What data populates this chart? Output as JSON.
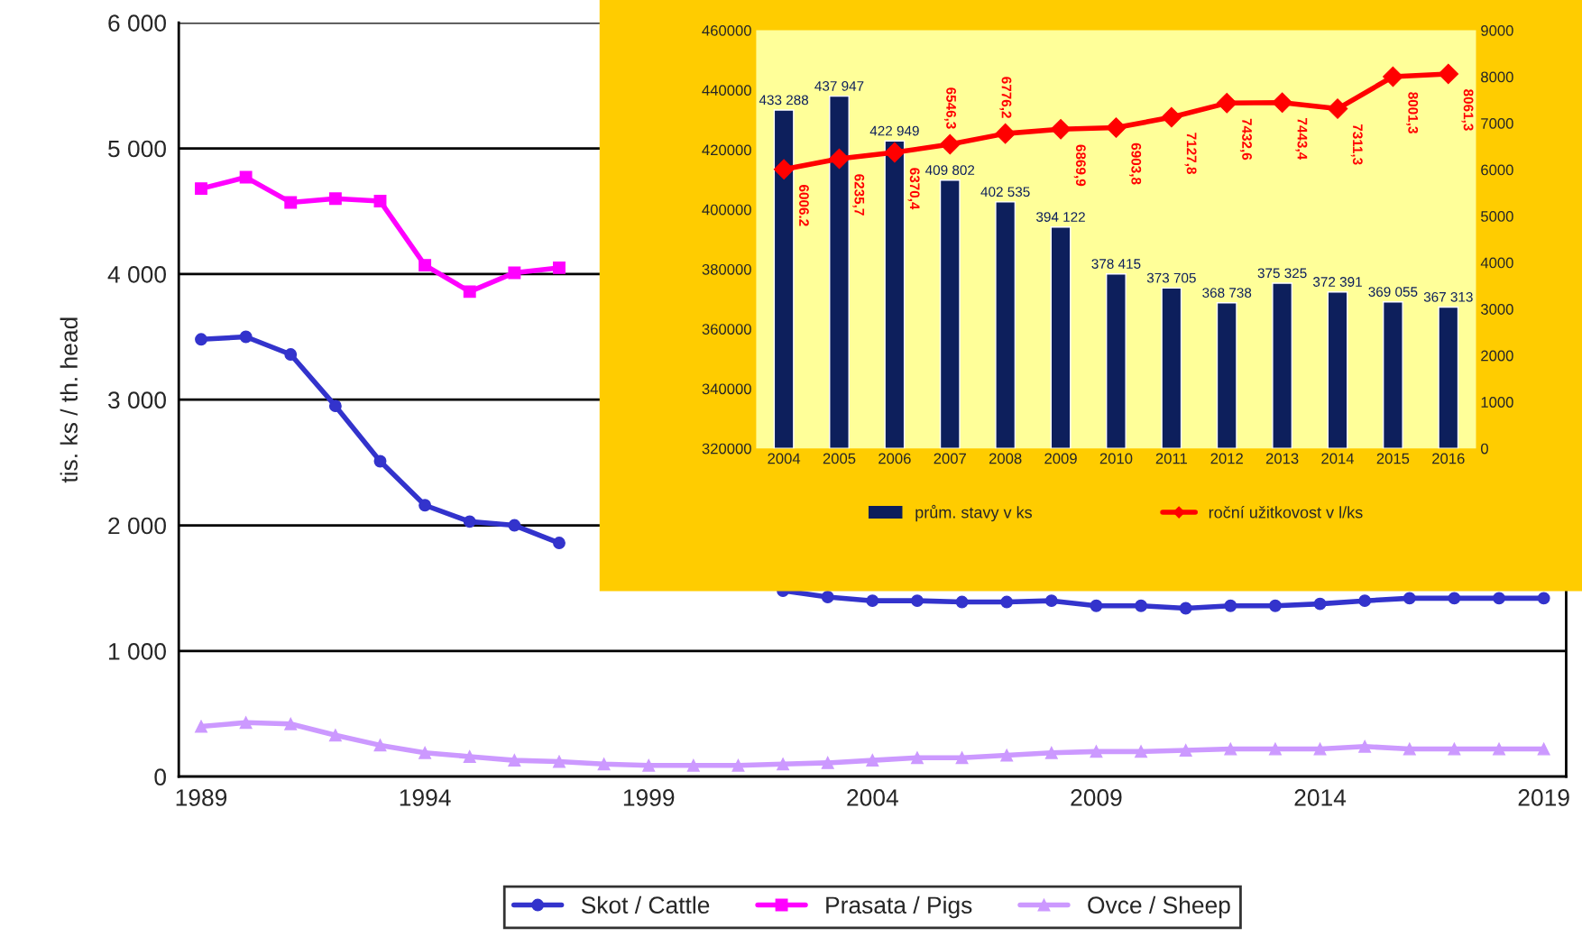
{
  "chart_data": [
    {
      "type": "line",
      "ylabel": "tis. ks / th. head",
      "x": [
        1989,
        1990,
        1991,
        1992,
        1993,
        1994,
        1995,
        1996,
        1997,
        1998,
        1999,
        2000,
        2001,
        2002,
        2003,
        2004,
        2005,
        2006,
        2007,
        2008,
        2009,
        2010,
        2011,
        2012,
        2013,
        2014,
        2015,
        2016,
        2017,
        2018,
        2019
      ],
      "series": [
        {
          "name": "Skot / Cattle",
          "color": "#3333cc",
          "marker": "circle",
          "values": [
            3480,
            3500,
            3360,
            2950,
            2510,
            2160,
            2030,
            2000,
            1860,
            null,
            null,
            null,
            null,
            1480,
            1430,
            1400,
            1400,
            1390,
            1390,
            1400,
            1360,
            1360,
            1340,
            1360,
            1360,
            1375,
            1400,
            1420,
            1420,
            1420,
            1420
          ]
        },
        {
          "name": "Prasata / Pigs",
          "color": "#ff00ff",
          "marker": "square",
          "values": [
            4680,
            4770,
            4570,
            4600,
            4580,
            4070,
            3860,
            4010,
            4050,
            null,
            null,
            null,
            null,
            null,
            null,
            null,
            null,
            null,
            null,
            null,
            null,
            null,
            null,
            null,
            null,
            null,
            null,
            null,
            null,
            null,
            null
          ]
        },
        {
          "name": "Ovce / Sheep",
          "color": "#cc99ff",
          "marker": "triangle",
          "values": [
            400,
            430,
            420,
            330,
            250,
            190,
            160,
            130,
            120,
            100,
            90,
            90,
            90,
            100,
            110,
            130,
            150,
            150,
            170,
            190,
            200,
            200,
            210,
            220,
            220,
            220,
            240,
            220,
            220,
            220,
            220
          ]
        }
      ],
      "xlim": [
        1988.5,
        2019.5
      ],
      "xticks": [
        1989,
        1994,
        1999,
        2004,
        2009,
        2014,
        2019
      ],
      "ylim": [
        0,
        6000
      ],
      "yticks": [
        0,
        {
          "value": 1000,
          "label": "1 000"
        },
        {
          "value": 2000,
          "label": "2 000"
        },
        {
          "value": 3000,
          "label": "3 000"
        },
        {
          "value": 4000,
          "label": "4 000"
        },
        {
          "value": 5000,
          "label": "5 000"
        },
        {
          "value": 6000,
          "label": "6 000"
        }
      ],
      "grid": "y",
      "legend": "bottom"
    },
    {
      "type": "bar",
      "categories": [
        "2004",
        "2005",
        "2006",
        "2007",
        "2008",
        "2009",
        "2010",
        "2011",
        "2012",
        "2013",
        "2014",
        "2015",
        "2016"
      ],
      "series": [
        {
          "name": "prům. stavy v ks",
          "type": "bar",
          "color": "#0d1f5c",
          "values": [
            433288,
            437947,
            422949,
            409802,
            402535,
            394122,
            378415,
            373705,
            368738,
            375325,
            372391,
            369055,
            367313
          ],
          "value_labels": [
            "433 288",
            "437 947",
            "422 949",
            "409 802",
            "402 535",
            "394 122",
            "378 415",
            "373 705",
            "368 738",
            "375 325",
            "372 391",
            "369 055",
            "367 313"
          ]
        },
        {
          "name": "roční užitkovost v l/ks",
          "type": "line",
          "axis": "y2",
          "marker": "diamond",
          "color": "#ff0000",
          "values": [
            6006.2,
            6235.7,
            6370.4,
            6546.3,
            6776.2,
            6869.9,
            6903.8,
            7127.8,
            7432.6,
            7443.4,
            7311.3,
            8001.3,
            8061.3
          ],
          "value_labels": [
            "6006.2",
            "6235,7",
            "6370,4",
            "6546,3",
            "6776,2",
            "6869,9",
            "6903,8",
            "7127,8",
            "7432,6",
            "7443,4",
            "7311,3",
            "8001,3",
            "8061,3"
          ]
        }
      ],
      "ylim": [
        320000,
        460000
      ],
      "yticks": [
        320000,
        340000,
        360000,
        380000,
        400000,
        420000,
        440000,
        460000
      ],
      "y2lim": [
        0,
        9000
      ],
      "y2ticks": [
        0,
        1000,
        2000,
        3000,
        4000,
        5000,
        6000,
        7000,
        8000,
        9000
      ],
      "legend": "bottom"
    }
  ]
}
